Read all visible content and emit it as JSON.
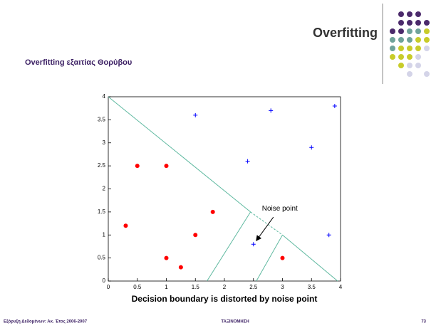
{
  "slide": {
    "title": "Overfitting",
    "subtitle": "Overfitting εξαιτίας Θορύβου",
    "caption": "Decision boundary is distorted by noise point",
    "footer": {
      "left": "Εξόρυξη Δεδομένων: Ακ. Έτος 2006-2007",
      "center": "ΤΑΞΙΝΟΜΗΣΗ",
      "page": "73"
    }
  },
  "chart_data": {
    "type": "scatter",
    "xlim": [
      0,
      4
    ],
    "ylim": [
      0,
      4
    ],
    "xticks": [
      0,
      0.5,
      1,
      1.5,
      2,
      2.5,
      3,
      3.5,
      4
    ],
    "yticks": [
      0,
      0.5,
      1,
      1.5,
      2,
      2.5,
      3,
      3.5,
      4
    ],
    "series": [
      {
        "color": "#ff0000",
        "marker": "dot",
        "x": [
          0.3,
          0.5,
          1,
          1,
          1.25,
          1.5,
          1.8,
          3
        ],
        "values": [
          1.2,
          2.5,
          2.5,
          0.5,
          0.3,
          1,
          1.5,
          0.5
        ]
      },
      {
        "color": "#0000ff",
        "marker": "plus",
        "x": [
          1.5,
          2.8,
          3.9,
          2.4,
          3.5,
          3.8,
          2.5
        ],
        "values": [
          3.6,
          3.7,
          3.8,
          2.6,
          2.9,
          1,
          0.8
        ]
      }
    ],
    "boundary_color": "#5fb9a0",
    "boundaries": [
      {
        "x": [
          0,
          2.45
        ],
        "y": [
          4,
          1.5
        ]
      },
      {
        "x": [
          2.45,
          3
        ],
        "y": [
          1.5,
          1
        ],
        "dashed": true
      },
      {
        "x": [
          3,
          3.95
        ],
        "y": [
          1,
          0
        ]
      },
      {
        "x": [
          2.45,
          1.7
        ],
        "y": [
          1.5,
          0
        ]
      },
      {
        "x": [
          3,
          2.55
        ],
        "y": [
          1,
          0
        ]
      }
    ],
    "annotation": {
      "text": "Noise point",
      "x": 2.5,
      "y": 0.8
    }
  }
}
